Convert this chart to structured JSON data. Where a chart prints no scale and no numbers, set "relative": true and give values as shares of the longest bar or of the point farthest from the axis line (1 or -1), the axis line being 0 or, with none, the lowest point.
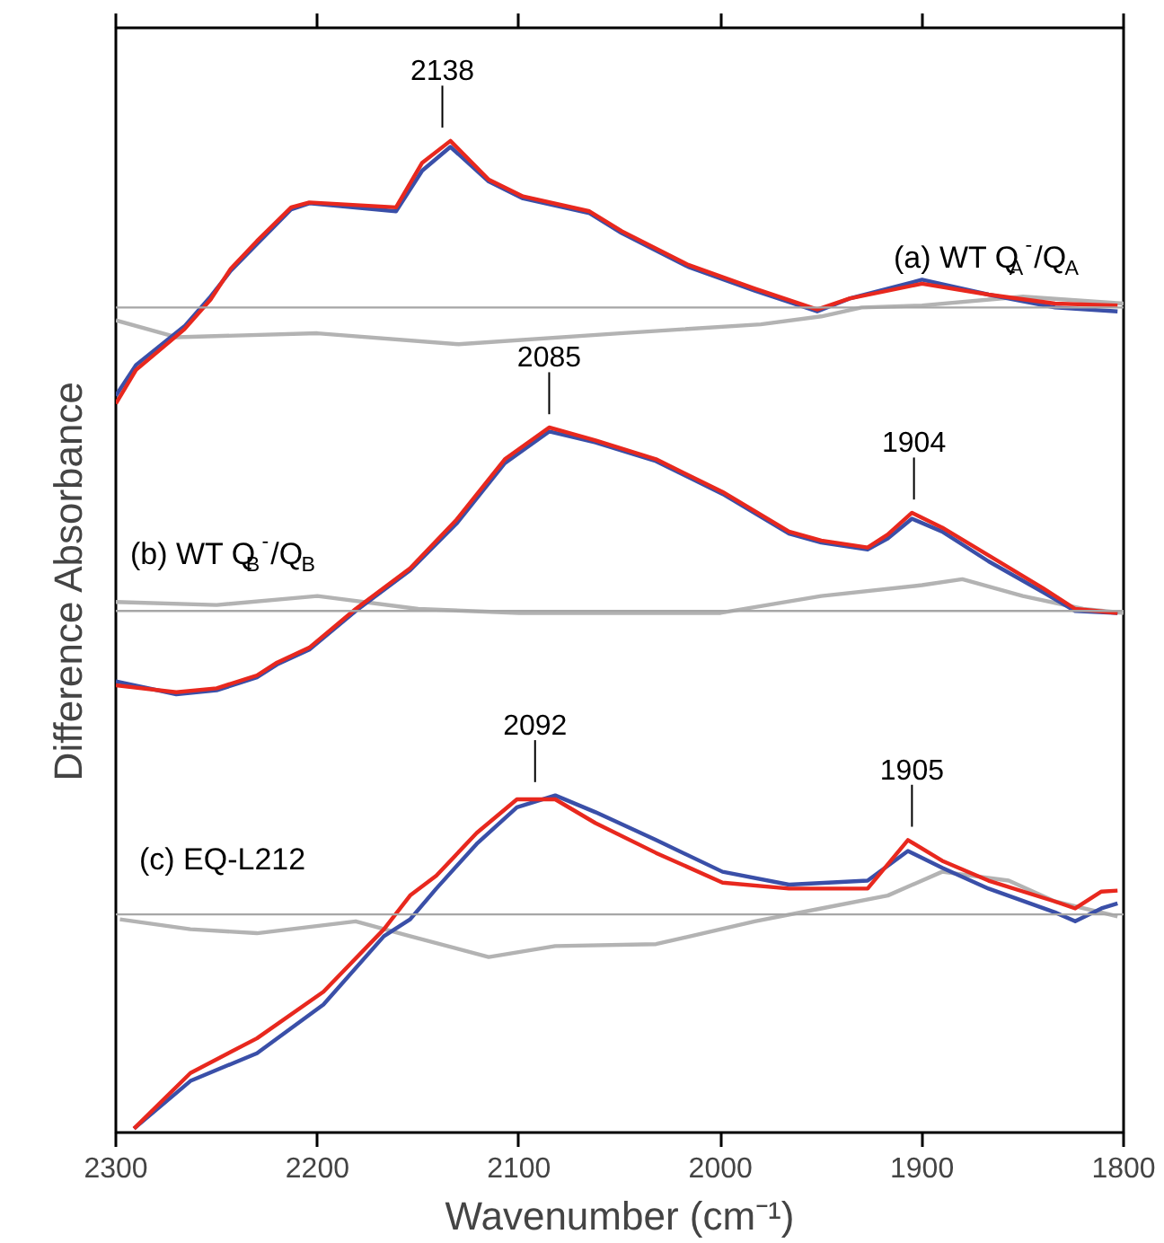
{
  "chart_data": {
    "type": "line",
    "relative": true,
    "xlabel": "Wavenumber (cm⁻¹)",
    "ylabel": "Difference Absorbance",
    "xlim": [
      2300,
      1800
    ],
    "xticks": [
      2300,
      2200,
      2100,
      2000,
      1900,
      1800
    ],
    "tick_labels": "x",
    "grid": false,
    "line_style": "solid",
    "marker": "none",
    "series": [
      {
        "color": "#b3b3b3",
        "x": [
          2300,
          2270,
          2200,
          2130,
          2050,
          1980,
          1950,
          1930,
          1900,
          1850,
          1800
        ],
        "values": [
          0.819,
          0.802,
          0.806,
          0.795,
          0.806,
          0.815,
          0.823,
          0.832,
          0.834,
          0.843,
          0.836
        ]
      },
      {
        "color": "#3a4fa8",
        "x": [
          2300,
          2290,
          2266,
          2253,
          2243,
          2230,
          2213,
          2204,
          2161,
          2148,
          2134,
          2115,
          2098,
          2065,
          2049,
          2016,
          1983,
          1952,
          1936,
          1900,
          1867,
          1834,
          1803
        ],
        "values": [
          0.743,
          0.774,
          0.813,
          0.843,
          0.869,
          0.896,
          0.931,
          0.937,
          0.929,
          0.97,
          0.994,
          0.959,
          0.942,
          0.927,
          0.907,
          0.873,
          0.849,
          0.828,
          0.841,
          0.86,
          0.845,
          0.832,
          0.828
        ]
      },
      {
        "color": "#e8281e",
        "x": [
          2300,
          2290,
          2266,
          2253,
          2243,
          2230,
          2213,
          2204,
          2161,
          2148,
          2134,
          2115,
          2098,
          2065,
          2049,
          2016,
          1983,
          1952,
          1936,
          1900,
          1867,
          1834,
          1803
        ],
        "values": [
          0.735,
          0.769,
          0.81,
          0.84,
          0.871,
          0.899,
          0.933,
          0.938,
          0.933,
          0.978,
          1.0,
          0.961,
          0.944,
          0.929,
          0.909,
          0.875,
          0.851,
          0.83,
          0.841,
          0.856,
          0.845,
          0.836,
          0.834
        ]
      },
      {
        "color": "#b3b3b3",
        "x": [
          2300,
          2250,
          2200,
          2150,
          2100,
          2000,
          1950,
          1900,
          1880,
          1850,
          1820,
          1800
        ],
        "values": [
          0.535,
          0.532,
          0.541,
          0.528,
          0.524,
          0.524,
          0.541,
          0.552,
          0.558,
          0.541,
          0.528,
          0.524
        ]
      },
      {
        "color": "#3a4fa8",
        "x": [
          2300,
          2270,
          2250,
          2230,
          2220,
          2204,
          2181,
          2154,
          2131,
          2107,
          2085,
          2062,
          2032,
          1999,
          1966,
          1950,
          1927,
          1917,
          1905,
          1890,
          1867,
          1840,
          1824,
          1803
        ],
        "values": [
          0.455,
          0.442,
          0.446,
          0.459,
          0.472,
          0.487,
          0.526,
          0.567,
          0.614,
          0.675,
          0.707,
          0.696,
          0.677,
          0.644,
          0.604,
          0.595,
          0.588,
          0.599,
          0.619,
          0.606,
          0.576,
          0.545,
          0.526,
          0.524
        ]
      },
      {
        "color": "#e8281e",
        "x": [
          2300,
          2270,
          2250,
          2230,
          2220,
          2204,
          2181,
          2154,
          2131,
          2107,
          2085,
          2062,
          2032,
          1999,
          1966,
          1950,
          1927,
          1917,
          1905,
          1890,
          1867,
          1840,
          1824,
          1803
        ],
        "values": [
          0.451,
          0.444,
          0.448,
          0.461,
          0.474,
          0.489,
          0.528,
          0.569,
          0.618,
          0.679,
          0.711,
          0.698,
          0.679,
          0.646,
          0.606,
          0.597,
          0.59,
          0.603,
          0.625,
          0.61,
          0.582,
          0.549,
          0.528,
          0.524
        ]
      },
      {
        "color": "#b3b3b3",
        "x": [
          2298,
          2263,
          2230,
          2181,
          2154,
          2115,
          2082,
          2032,
          1983,
          1950,
          1917,
          1890,
          1857,
          1834,
          1803
        ],
        "values": [
          0.215,
          0.205,
          0.201,
          0.213,
          0.198,
          0.177,
          0.188,
          0.19,
          0.213,
          0.226,
          0.239,
          0.263,
          0.254,
          0.233,
          0.218
        ]
      },
      {
        "color": "#3a4fa8",
        "x": [
          2291,
          2263,
          2230,
          2197,
          2167,
          2154,
          2141,
          2121,
          2101,
          2082,
          2062,
          2032,
          1999,
          1966,
          1927,
          1907,
          1890,
          1867,
          1834,
          1824,
          1811,
          1803
        ],
        "values": [
          0.004,
          0.052,
          0.08,
          0.129,
          0.198,
          0.215,
          0.246,
          0.291,
          0.328,
          0.34,
          0.323,
          0.295,
          0.263,
          0.25,
          0.254,
          0.284,
          0.267,
          0.246,
          0.222,
          0.213,
          0.226,
          0.231
        ]
      },
      {
        "color": "#e8281e",
        "x": [
          2291,
          2263,
          2230,
          2197,
          2167,
          2154,
          2141,
          2121,
          2101,
          2082,
          2062,
          2032,
          1999,
          1966,
          1927,
          1907,
          1890,
          1867,
          1834,
          1824,
          1811,
          1803
        ],
        "values": [
          0.004,
          0.06,
          0.095,
          0.142,
          0.205,
          0.239,
          0.259,
          0.302,
          0.336,
          0.336,
          0.312,
          0.282,
          0.252,
          0.246,
          0.246,
          0.295,
          0.274,
          0.254,
          0.233,
          0.226,
          0.243,
          0.244
        ]
      }
    ],
    "ref_lines": [
      {
        "axis": "y",
        "value": 0.832,
        "color": "#a6a6a6"
      },
      {
        "axis": "y",
        "value": 0.526,
        "color": "#a6a6a6"
      },
      {
        "axis": "y",
        "value": 0.22,
        "color": "#a6a6a6"
      }
    ],
    "annotations": [
      {
        "text": "2138",
        "x": 2138,
        "y": 1.0
      },
      {
        "text": "2085",
        "x": 2085,
        "y": 0.711
      },
      {
        "text": "1904",
        "x": 1904,
        "y": 0.625
      },
      {
        "text": "2092",
        "x": 2092,
        "y": 0.34
      },
      {
        "text": "1905",
        "x": 1905,
        "y": 0.295
      },
      "(a) WT Q$_{A}$$^{-}$/Q$_{A}$",
      "(b) WT Q$_{B}$$^{-}$/Q$_{B}$",
      "(c) EQ-L212"
    ]
  }
}
